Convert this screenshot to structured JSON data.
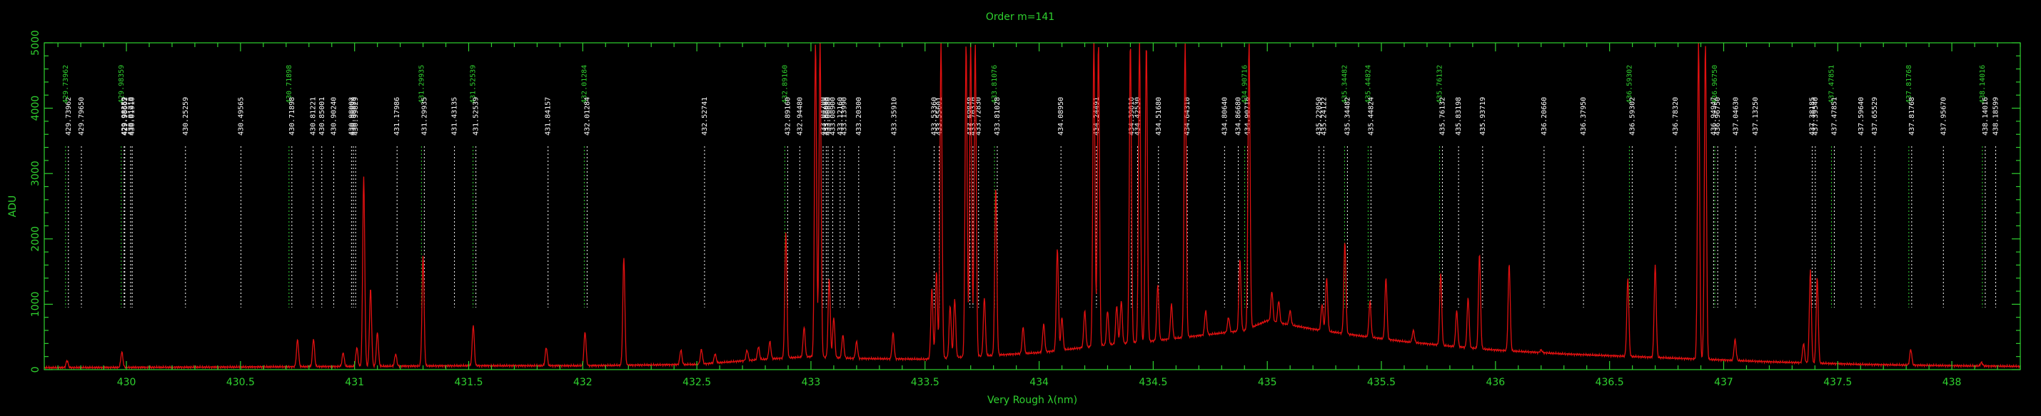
{
  "chart_data": {
    "type": "line",
    "title": "Order m=141",
    "xlabel": "Very Rough λ(nm)",
    "ylabel": "ADU",
    "xlim": [
      429.64,
      438.3
    ],
    "ylim": [
      0,
      5000
    ],
    "xticks": [
      430,
      430.5,
      431,
      431.5,
      432,
      432.5,
      433,
      433.5,
      434,
      434.5,
      435,
      435.5,
      436,
      436.5,
      437,
      437.5,
      438
    ],
    "xtick_labels": [
      "430",
      "430.5",
      "431",
      "431.5",
      "432",
      "432.5",
      "433",
      "433.5",
      "434",
      "434.5",
      "435",
      "435.5",
      "436",
      "436.5",
      "437",
      "437.5",
      "438"
    ],
    "yticks": [
      0,
      1000,
      2000,
      3000,
      4000,
      5000
    ],
    "ytick_labels": [
      "0",
      "1000",
      "2000",
      "3000",
      "4000",
      "5000"
    ],
    "grid": false,
    "colors": {
      "axes": "#2fd12f",
      "spectrum": "#e01010",
      "line_ids_white": "#ffffff",
      "line_ids_green": "#2fd12f",
      "background": "#000000"
    },
    "spectrum": {
      "name": "",
      "baseline": [
        [
          429.64,
          30
        ],
        [
          430.5,
          40
        ],
        [
          431,
          50
        ],
        [
          431.5,
          60
        ],
        [
          432,
          60
        ],
        [
          432.5,
          80
        ],
        [
          432.8,
          160
        ],
        [
          433,
          200
        ],
        [
          433.2,
          170
        ],
        [
          433.5,
          160
        ],
        [
          433.7,
          200
        ],
        [
          434,
          260
        ],
        [
          434.3,
          380
        ],
        [
          434.5,
          440
        ],
        [
          434.7,
          520
        ],
        [
          434.9,
          600
        ],
        [
          435,
          750
        ],
        [
          435.2,
          620
        ],
        [
          435.4,
          520
        ],
        [
          435.6,
          430
        ],
        [
          435.8,
          360
        ],
        [
          436,
          300
        ],
        [
          436.3,
          240
        ],
        [
          436.6,
          200
        ],
        [
          436.9,
          160
        ],
        [
          437.2,
          120
        ],
        [
          437.6,
          80
        ],
        [
          438,
          60
        ],
        [
          438.3,
          50
        ]
      ],
      "peaks": [
        {
          "x": 429.74,
          "y": 140
        },
        {
          "x": 429.98,
          "y": 270
        },
        {
          "x": 430.75,
          "y": 460
        },
        {
          "x": 430.82,
          "y": 470
        },
        {
          "x": 430.95,
          "y": 260
        },
        {
          "x": 431.01,
          "y": 340
        },
        {
          "x": 431.04,
          "y": 2950
        },
        {
          "x": 431.07,
          "y": 1240
        },
        {
          "x": 431.1,
          "y": 570
        },
        {
          "x": 431.18,
          "y": 240
        },
        {
          "x": 431.3,
          "y": 1750
        },
        {
          "x": 431.52,
          "y": 680
        },
        {
          "x": 431.84,
          "y": 340
        },
        {
          "x": 432.01,
          "y": 580
        },
        {
          "x": 432.18,
          "y": 1720
        },
        {
          "x": 432.43,
          "y": 300
        },
        {
          "x": 432.52,
          "y": 310
        },
        {
          "x": 432.58,
          "y": 240
        },
        {
          "x": 432.72,
          "y": 300
        },
        {
          "x": 432.77,
          "y": 350
        },
        {
          "x": 432.82,
          "y": 430
        },
        {
          "x": 432.89,
          "y": 2100
        },
        {
          "x": 432.97,
          "y": 650
        },
        {
          "x": 433.02,
          "y": 5000
        },
        {
          "x": 433.04,
          "y": 5000
        },
        {
          "x": 433.08,
          "y": 1400
        },
        {
          "x": 433.1,
          "y": 800
        },
        {
          "x": 433.14,
          "y": 530
        },
        {
          "x": 433.2,
          "y": 430
        },
        {
          "x": 433.36,
          "y": 560
        },
        {
          "x": 433.53,
          "y": 1250
        },
        {
          "x": 433.55,
          "y": 1500
        },
        {
          "x": 433.57,
          "y": 5000
        },
        {
          "x": 433.61,
          "y": 980
        },
        {
          "x": 433.63,
          "y": 1080
        },
        {
          "x": 433.68,
          "y": 5000
        },
        {
          "x": 433.7,
          "y": 5000
        },
        {
          "x": 433.72,
          "y": 5000
        },
        {
          "x": 433.76,
          "y": 1100
        },
        {
          "x": 433.81,
          "y": 2800
        },
        {
          "x": 433.93,
          "y": 650
        },
        {
          "x": 434.02,
          "y": 700
        },
        {
          "x": 434.08,
          "y": 1850
        },
        {
          "x": 434.1,
          "y": 800
        },
        {
          "x": 434.2,
          "y": 900
        },
        {
          "x": 434.24,
          "y": 5000
        },
        {
          "x": 434.26,
          "y": 5000
        },
        {
          "x": 434.3,
          "y": 900
        },
        {
          "x": 434.34,
          "y": 980
        },
        {
          "x": 434.36,
          "y": 1050
        },
        {
          "x": 434.4,
          "y": 5000
        },
        {
          "x": 434.44,
          "y": 5000
        },
        {
          "x": 434.47,
          "y": 5000
        },
        {
          "x": 434.52,
          "y": 1300
        },
        {
          "x": 434.58,
          "y": 1000
        },
        {
          "x": 434.64,
          "y": 5000
        },
        {
          "x": 434.73,
          "y": 900
        },
        {
          "x": 434.83,
          "y": 800
        },
        {
          "x": 434.88,
          "y": 1700
        },
        {
          "x": 434.92,
          "y": 5000
        },
        {
          "x": 435.02,
          "y": 1200
        },
        {
          "x": 435.05,
          "y": 1050
        },
        {
          "x": 435.1,
          "y": 900
        },
        {
          "x": 435.24,
          "y": 1000
        },
        {
          "x": 435.26,
          "y": 1400
        },
        {
          "x": 435.34,
          "y": 1950
        },
        {
          "x": 435.45,
          "y": 1050
        },
        {
          "x": 435.52,
          "y": 1400
        },
        {
          "x": 435.64,
          "y": 600
        },
        {
          "x": 435.76,
          "y": 1480
        },
        {
          "x": 435.83,
          "y": 900
        },
        {
          "x": 435.88,
          "y": 1100
        },
        {
          "x": 435.93,
          "y": 1780
        },
        {
          "x": 436.06,
          "y": 1620
        },
        {
          "x": 436.2,
          "y": 300
        },
        {
          "x": 436.58,
          "y": 1400
        },
        {
          "x": 436.7,
          "y": 1600
        },
        {
          "x": 436.89,
          "y": 5000
        },
        {
          "x": 436.92,
          "y": 5000
        },
        {
          "x": 437.05,
          "y": 460
        },
        {
          "x": 437.35,
          "y": 400
        },
        {
          "x": 437.38,
          "y": 1520
        },
        {
          "x": 437.41,
          "y": 1400
        },
        {
          "x": 437.82,
          "y": 310
        },
        {
          "x": 438.13,
          "y": 110
        }
      ]
    },
    "line_ids": [
      {
        "x": 429.7396,
        "label": "429.73962",
        "color": "white"
      },
      {
        "x": 429.7396,
        "label": "429.73962",
        "color": "green"
      },
      {
        "x": 429.7965,
        "label": "429.79650",
        "color": "white"
      },
      {
        "x": 429.9836,
        "label": "429.98359",
        "color": "green"
      },
      {
        "x": 429.9836,
        "label": "429.98359",
        "color": "white"
      },
      {
        "x": 429.9866,
        "label": "429.98662",
        "color": "white"
      },
      {
        "x": 430.0121,
        "label": "430.01210",
        "color": "white"
      },
      {
        "x": 430.0191,
        "label": "430.01910",
        "color": "white"
      },
      {
        "x": 430.2526,
        "label": "430.25259",
        "color": "white"
      },
      {
        "x": 430.4957,
        "label": "430.49565",
        "color": "white"
      },
      {
        "x": 430.7188,
        "label": "430.71898",
        "color": "green"
      },
      {
        "x": 430.7188,
        "label": "430.71898",
        "color": "white"
      },
      {
        "x": 430.8122,
        "label": "430.81221",
        "color": "white"
      },
      {
        "x": 430.85,
        "label": "430.85001",
        "color": "white"
      },
      {
        "x": 430.9024,
        "label": "430.90240",
        "color": "white"
      },
      {
        "x": 430.9802,
        "label": "430.98002",
        "color": "white"
      },
      {
        "x": 430.9883,
        "label": "430.98829",
        "color": "white"
      },
      {
        "x": 430.9983,
        "label": "430.99829",
        "color": "white"
      },
      {
        "x": 431.1799,
        "label": "431.17986",
        "color": "white"
      },
      {
        "x": 431.2993,
        "label": "431.29935",
        "color": "green"
      },
      {
        "x": 431.2993,
        "label": "431.29935",
        "color": "white"
      },
      {
        "x": 431.4314,
        "label": "431.43135",
        "color": "white"
      },
      {
        "x": 431.5254,
        "label": "431.52539",
        "color": "green"
      },
      {
        "x": 431.5254,
        "label": "431.52539",
        "color": "white"
      },
      {
        "x": 431.8416,
        "label": "431.84157",
        "color": "white"
      },
      {
        "x": 432.0128,
        "label": "432.01284",
        "color": "green"
      },
      {
        "x": 432.0128,
        "label": "432.01284",
        "color": "white"
      },
      {
        "x": 432.5274,
        "label": "432.52741",
        "color": "white"
      },
      {
        "x": 432.8916,
        "label": "432.89160",
        "color": "green"
      },
      {
        "x": 432.8916,
        "label": "432.89160",
        "color": "white"
      },
      {
        "x": 432.9448,
        "label": "432.94480",
        "color": "white"
      },
      {
        "x": 433.047,
        "label": "433.04700",
        "color": "white"
      },
      {
        "x": 433.0609,
        "label": "433.06090",
        "color": "white"
      },
      {
        "x": 433.0688,
        "label": "433.06880",
        "color": "white"
      },
      {
        "x": 433.089,
        "label": "433.08900",
        "color": "white"
      },
      {
        "x": 433.1216,
        "label": "433.12160",
        "color": "white"
      },
      {
        "x": 433.1399,
        "label": "433.13990",
        "color": "white"
      },
      {
        "x": 433.203,
        "label": "433.20300",
        "color": "white"
      },
      {
        "x": 433.3591,
        "label": "433.35910",
        "color": "white"
      },
      {
        "x": 433.5336,
        "label": "433.53360",
        "color": "white"
      },
      {
        "x": 433.556,
        "label": "433.55601",
        "color": "white"
      },
      {
        "x": 433.6904,
        "label": "433.69040",
        "color": "white"
      },
      {
        "x": 433.7037,
        "label": "433.70370",
        "color": "white"
      },
      {
        "x": 433.7283,
        "label": "433.72830",
        "color": "white"
      },
      {
        "x": 433.8107,
        "label": "433.81076",
        "color": "green"
      },
      {
        "x": 433.8103,
        "label": "433.81028",
        "color": "white"
      },
      {
        "x": 434.0895,
        "label": "434.08950",
        "color": "white"
      },
      {
        "x": 434.2449,
        "label": "434.24491",
        "color": "white"
      },
      {
        "x": 434.3981,
        "label": "434.39810",
        "color": "white"
      },
      {
        "x": 434.4253,
        "label": "434.42530",
        "color": "white"
      },
      {
        "x": 434.5168,
        "label": "434.51680",
        "color": "white"
      },
      {
        "x": 434.6431,
        "label": "434.64310",
        "color": "white"
      },
      {
        "x": 434.8064,
        "label": "434.80640",
        "color": "white"
      },
      {
        "x": 434.8668,
        "label": "434.86680",
        "color": "white"
      },
      {
        "x": 434.9072,
        "label": "434.90716",
        "color": "white"
      },
      {
        "x": 434.9072,
        "label": "434.90716",
        "color": "green"
      },
      {
        "x": 435.2205,
        "label": "435.22050",
        "color": "white"
      },
      {
        "x": 435.2412,
        "label": "435.24122",
        "color": "white"
      },
      {
        "x": 435.3447,
        "label": "435.34482",
        "color": "green"
      },
      {
        "x": 435.3447,
        "label": "435.34482",
        "color": "white"
      },
      {
        "x": 435.4482,
        "label": "435.44824",
        "color": "green"
      },
      {
        "x": 435.4482,
        "label": "435.44824",
        "color": "white"
      },
      {
        "x": 435.7613,
        "label": "435.76132",
        "color": "green"
      },
      {
        "x": 435.7613,
        "label": "435.76132",
        "color": "white"
      },
      {
        "x": 435.832,
        "label": "435.83198",
        "color": "white"
      },
      {
        "x": 435.9372,
        "label": "435.93719",
        "color": "white"
      },
      {
        "x": 436.2066,
        "label": "436.20660",
        "color": "white"
      },
      {
        "x": 436.3795,
        "label": "436.37950",
        "color": "white"
      },
      {
        "x": 436.593,
        "label": "436.59302",
        "color": "green"
      },
      {
        "x": 436.593,
        "label": "436.59302",
        "color": "white"
      },
      {
        "x": 436.7832,
        "label": "436.78320",
        "color": "white"
      },
      {
        "x": 436.9495,
        "label": "436.94947",
        "color": "white"
      },
      {
        "x": 436.9676,
        "label": "436.96750",
        "color": "green"
      },
      {
        "x": 436.9676,
        "label": "436.96750",
        "color": "white"
      },
      {
        "x": 437.0463,
        "label": "437.04630",
        "color": "white"
      },
      {
        "x": 437.1325,
        "label": "437.13250",
        "color": "white"
      },
      {
        "x": 437.3819,
        "label": "437.38185",
        "color": "white"
      },
      {
        "x": 437.3954,
        "label": "437.39540",
        "color": "white"
      },
      {
        "x": 437.4786,
        "label": "437.47851",
        "color": "green"
      },
      {
        "x": 437.4786,
        "label": "437.47851",
        "color": "white"
      },
      {
        "x": 437.5964,
        "label": "437.59640",
        "color": "white"
      },
      {
        "x": 437.6553,
        "label": "437.65529",
        "color": "white"
      },
      {
        "x": 437.8177,
        "label": "437.81768",
        "color": "green"
      },
      {
        "x": 437.8177,
        "label": "437.81768",
        "color": "white"
      },
      {
        "x": 437.9567,
        "label": "437.95670",
        "color": "white"
      },
      {
        "x": 438.1402,
        "label": "438.14016",
        "color": "green"
      },
      {
        "x": 438.1402,
        "label": "438.14016",
        "color": "white"
      },
      {
        "x": 438.186,
        "label": "438.18599",
        "color": "white"
      }
    ]
  }
}
